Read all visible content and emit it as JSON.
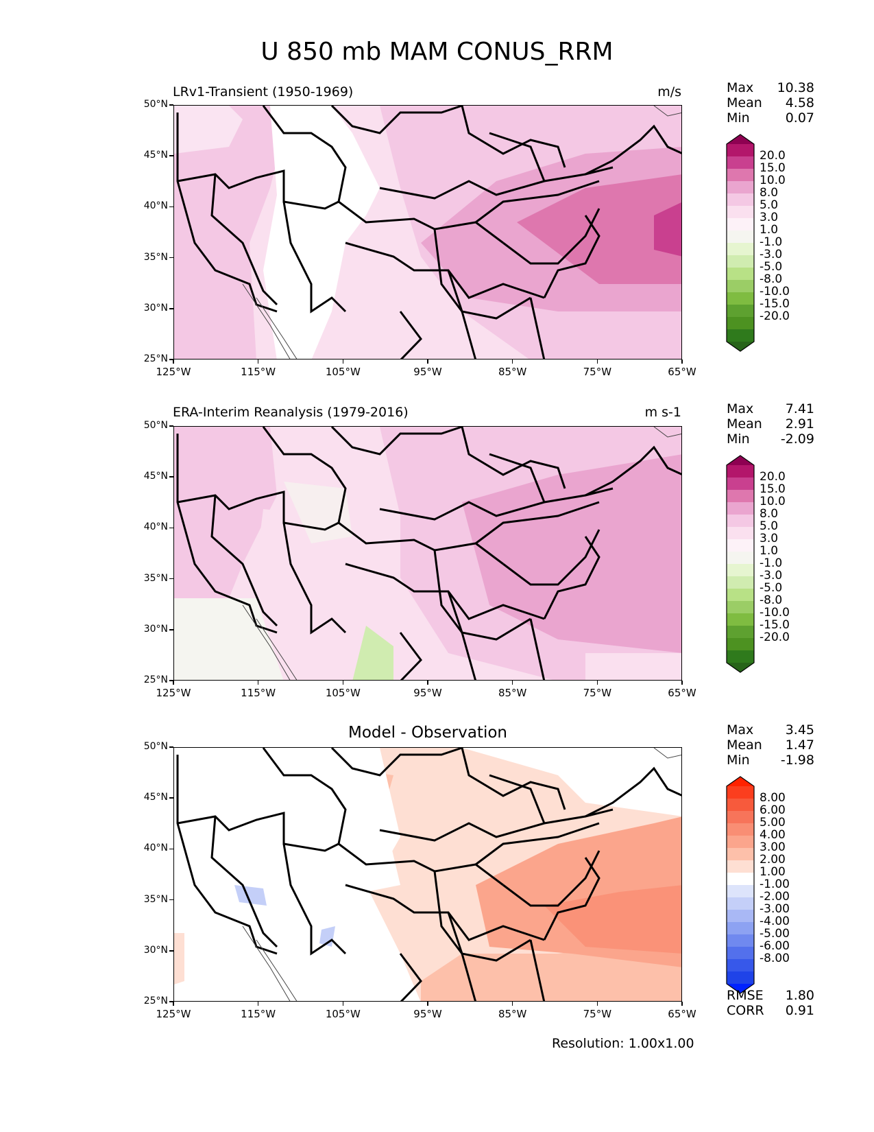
{
  "title": "U 850 mb MAM CONUS_RRM",
  "axes": {
    "lat_labels": [
      "50°N",
      "45°N",
      "40°N",
      "35°N",
      "30°N",
      "25°N"
    ],
    "lon_labels": [
      "125°W",
      "115°W",
      "105°W",
      "95°W",
      "85°W",
      "75°W",
      "65°W"
    ]
  },
  "panels": [
    {
      "left_title": "LRv1-Transient (1950-1969)",
      "right_title": "m/s",
      "stats": {
        "max_label": "Max",
        "max": "10.38",
        "mean_label": "Mean",
        "mean": "4.58",
        "min_label": "Min",
        "min": "0.07"
      },
      "colorbar": {
        "labels": [
          "20.0",
          "15.0",
          "10.0",
          "8.0",
          "5.0",
          "3.0",
          "1.0",
          "-1.0",
          "-3.0",
          "-5.0",
          "-8.0",
          "-10.0",
          "-15.0",
          "-20.0"
        ],
        "colors": [
          "#8e0152",
          "#b3166b",
          "#c9408f",
          "#de77ae",
          "#eaa5cf",
          "#f4c8e4",
          "#fae0ef",
          "#fdf2f8",
          "#f5f5f0",
          "#e6f5d0",
          "#d0ecb0",
          "#b8e186",
          "#9bcd66",
          "#7fbc41",
          "#5ea130",
          "#4d9221",
          "#2f7a1c",
          "#276419"
        ]
      }
    },
    {
      "left_title": "ERA-Interim Reanalysis (1979-2016)",
      "right_title": "m s-1",
      "stats": {
        "max_label": "Max",
        "max": "7.41",
        "mean_label": "Mean",
        "mean": "2.91",
        "min_label": "Min",
        "min": "-2.09"
      },
      "colorbar": {
        "labels": [
          "20.0",
          "15.0",
          "10.0",
          "8.0",
          "5.0",
          "3.0",
          "1.0",
          "-1.0",
          "-3.0",
          "-5.0",
          "-8.0",
          "-10.0",
          "-15.0",
          "-20.0"
        ],
        "colors": [
          "#8e0152",
          "#b3166b",
          "#c9408f",
          "#de77ae",
          "#eaa5cf",
          "#f4c8e4",
          "#fae0ef",
          "#fdf2f8",
          "#f5f5f0",
          "#e6f5d0",
          "#d0ecb0",
          "#b8e186",
          "#9bcd66",
          "#7fbc41",
          "#5ea130",
          "#4d9221",
          "#2f7a1c",
          "#276419"
        ]
      }
    },
    {
      "center_title": "Model - Observation",
      "stats": {
        "max_label": "Max",
        "max": "3.45",
        "mean_label": "Mean",
        "mean": "1.47",
        "min_label": "Min",
        "min": "-1.98"
      },
      "colorbar": {
        "labels": [
          "8.00",
          "6.00",
          "5.00",
          "4.00",
          "3.00",
          "2.00",
          "1.00",
          "-1.00",
          "-2.00",
          "-3.00",
          "-4.00",
          "-5.00",
          "-6.00",
          "-8.00"
        ],
        "colors": [
          "#ff2200",
          "#fb3e1e",
          "#f75a3c",
          "#f7745a",
          "#f98e74",
          "#fba58c",
          "#fdc0aa",
          "#fedfd3",
          "#ffffff",
          "#dde4fb",
          "#c4cff8",
          "#a9b8f5",
          "#8da2f2",
          "#7089ef",
          "#5370ec",
          "#3758ea",
          "#1f43e8",
          "#0022ff"
        ]
      },
      "rmse_label": "RMSE",
      "rmse": "1.80",
      "corr_label": "CORR",
      "corr": "0.91"
    }
  ],
  "resolution": "Resolution: 1.00x1.00"
}
